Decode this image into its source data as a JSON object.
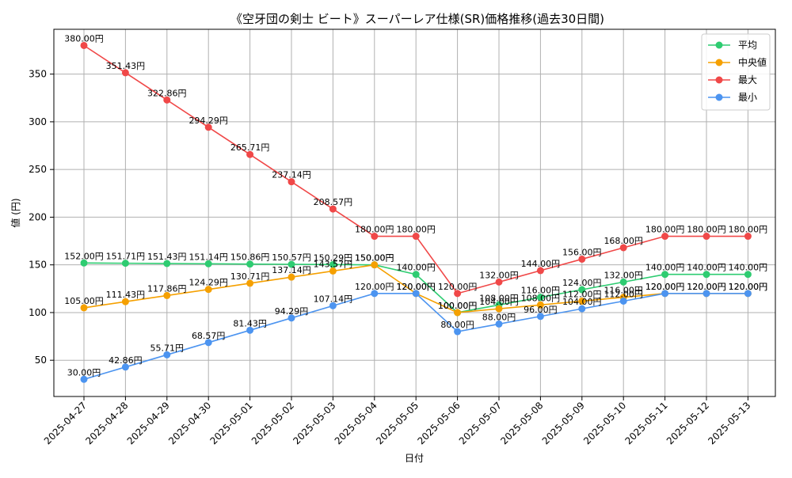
{
  "chart_data": {
    "type": "line",
    "title": "《空牙団の剣士 ビート》スーパーレア仕様(SR)価格推移(過去30日間)",
    "xlabel": "日付",
    "ylabel": "値 (円)",
    "ylim": [
      12,
      397
    ],
    "yticks": [
      50,
      100,
      150,
      200,
      250,
      300,
      350
    ],
    "grid": true,
    "legend_position": "top-right",
    "value_suffix": "円",
    "categories": [
      "2025-04-27",
      "2025-04-28",
      "2025-04-29",
      "2025-04-30",
      "2025-05-01",
      "2025-05-02",
      "2025-05-03",
      "2025-05-04",
      "2025-05-05",
      "2025-05-06",
      "2025-05-07",
      "2025-05-08",
      "2025-05-09",
      "2025-05-10",
      "2025-05-11",
      "2025-05-12",
      "2025-05-13"
    ],
    "series": [
      {
        "name": "平均",
        "color": "#2ecc71",
        "values": [
          152.0,
          151.71,
          151.43,
          151.14,
          150.86,
          150.57,
          150.29,
          150.0,
          140.0,
          100.0,
          108.0,
          116.0,
          124.0,
          132.0,
          140.0,
          140.0,
          140.0
        ]
      },
      {
        "name": "中央値",
        "color": "#f5a000",
        "values": [
          105.0,
          111.43,
          117.86,
          124.29,
          130.71,
          137.14,
          143.57,
          150.0,
          120.0,
          100.0,
          104.0,
          108.0,
          112.0,
          116.0,
          120.0,
          120.0,
          120.0
        ]
      },
      {
        "name": "最大",
        "color": "#f04848",
        "values": [
          380.0,
          351.43,
          322.86,
          294.29,
          265.71,
          237.14,
          208.57,
          180.0,
          180.0,
          120.0,
          132.0,
          144.0,
          156.0,
          168.0,
          180.0,
          180.0,
          180.0
        ]
      },
      {
        "name": "最小",
        "color": "#4c94f0",
        "values": [
          30.0,
          42.86,
          55.71,
          68.57,
          81.43,
          94.29,
          107.14,
          120.0,
          120.0,
          80.0,
          88.0,
          96.0,
          104.0,
          112.0,
          120.0,
          120.0,
          120.0
        ]
      }
    ]
  }
}
